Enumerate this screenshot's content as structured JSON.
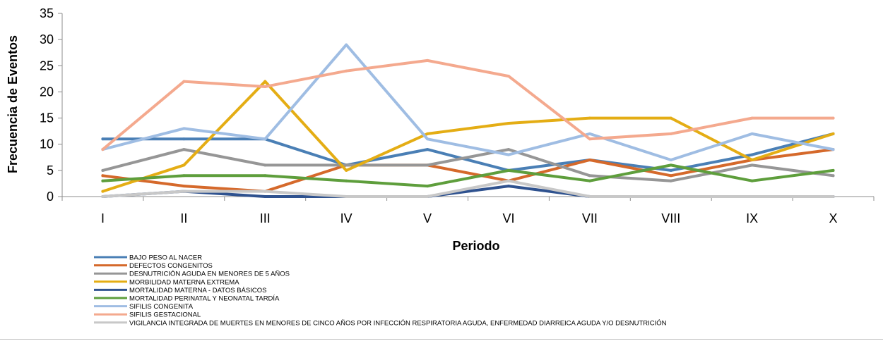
{
  "chart_data": {
    "type": "line",
    "xlabel": "Periodo",
    "ylabel": "Frecuencia de Eventos",
    "categories": [
      "I",
      "II",
      "III",
      "IV",
      "V",
      "VI",
      "VII",
      "VIII",
      "IX",
      "X"
    ],
    "ylim": [
      0,
      35
    ],
    "yticks": [
      0,
      5,
      10,
      15,
      20,
      25,
      30,
      35
    ],
    "grid": false,
    "legend_position": "bottom-left",
    "series": [
      {
        "name": "BAJO PESO AL NACER",
        "color": "#4a7fb5",
        "values": [
          11,
          11,
          11,
          6,
          9,
          5,
          7,
          5,
          8,
          12
        ]
      },
      {
        "name": "DEFECTOS CONGENITOS",
        "color": "#d5692b",
        "values": [
          4,
          2,
          1,
          6,
          6,
          3,
          7,
          4,
          7,
          9
        ]
      },
      {
        "name": "DESNUTRICIÓN AGUDA EN MENORES DE 5 AÑOS",
        "color": "#969696",
        "values": [
          5,
          9,
          6,
          6,
          6,
          9,
          4,
          3,
          6,
          4
        ]
      },
      {
        "name": "MORBILIDAD MATERNA EXTREMA",
        "color": "#e4ad14",
        "values": [
          1,
          6,
          22,
          5,
          12,
          14,
          15,
          15,
          7,
          12
        ]
      },
      {
        "name": "MORTALIDAD MATERNA - DATOS BÁSICOS",
        "color": "#2f528f",
        "values": [
          0,
          1,
          0,
          0,
          0,
          2,
          0,
          0,
          0,
          0
        ]
      },
      {
        "name": "MORTALIDAD PERINATAL Y NEONATAL TARDÍA",
        "color": "#5e9e3c",
        "values": [
          3,
          4,
          4,
          3,
          2,
          5,
          3,
          6,
          3,
          5
        ]
      },
      {
        "name": "SIFILIS CONGENITA",
        "color": "#9fbde3",
        "values": [
          9,
          13,
          11,
          29,
          11,
          8,
          12,
          7,
          12,
          9
        ]
      },
      {
        "name": "SIFILIS GESTACIONAL",
        "color": "#f4a98e",
        "values": [
          9,
          22,
          21,
          24,
          26,
          23,
          11,
          12,
          15,
          15
        ]
      },
      {
        "name": "VIGILANCIA INTEGRADA DE MUERTES EN MENORES DE CINCO AÑOS POR INFECCIÓN RESPIRATORIA AGUDA, ENFERMEDAD DIARREICA AGUDA Y/O DESNUTRICIÓN",
        "color": "#c8c8c8",
        "values": [
          0,
          1,
          1,
          0,
          0,
          3,
          0,
          0,
          0,
          0
        ]
      }
    ]
  }
}
